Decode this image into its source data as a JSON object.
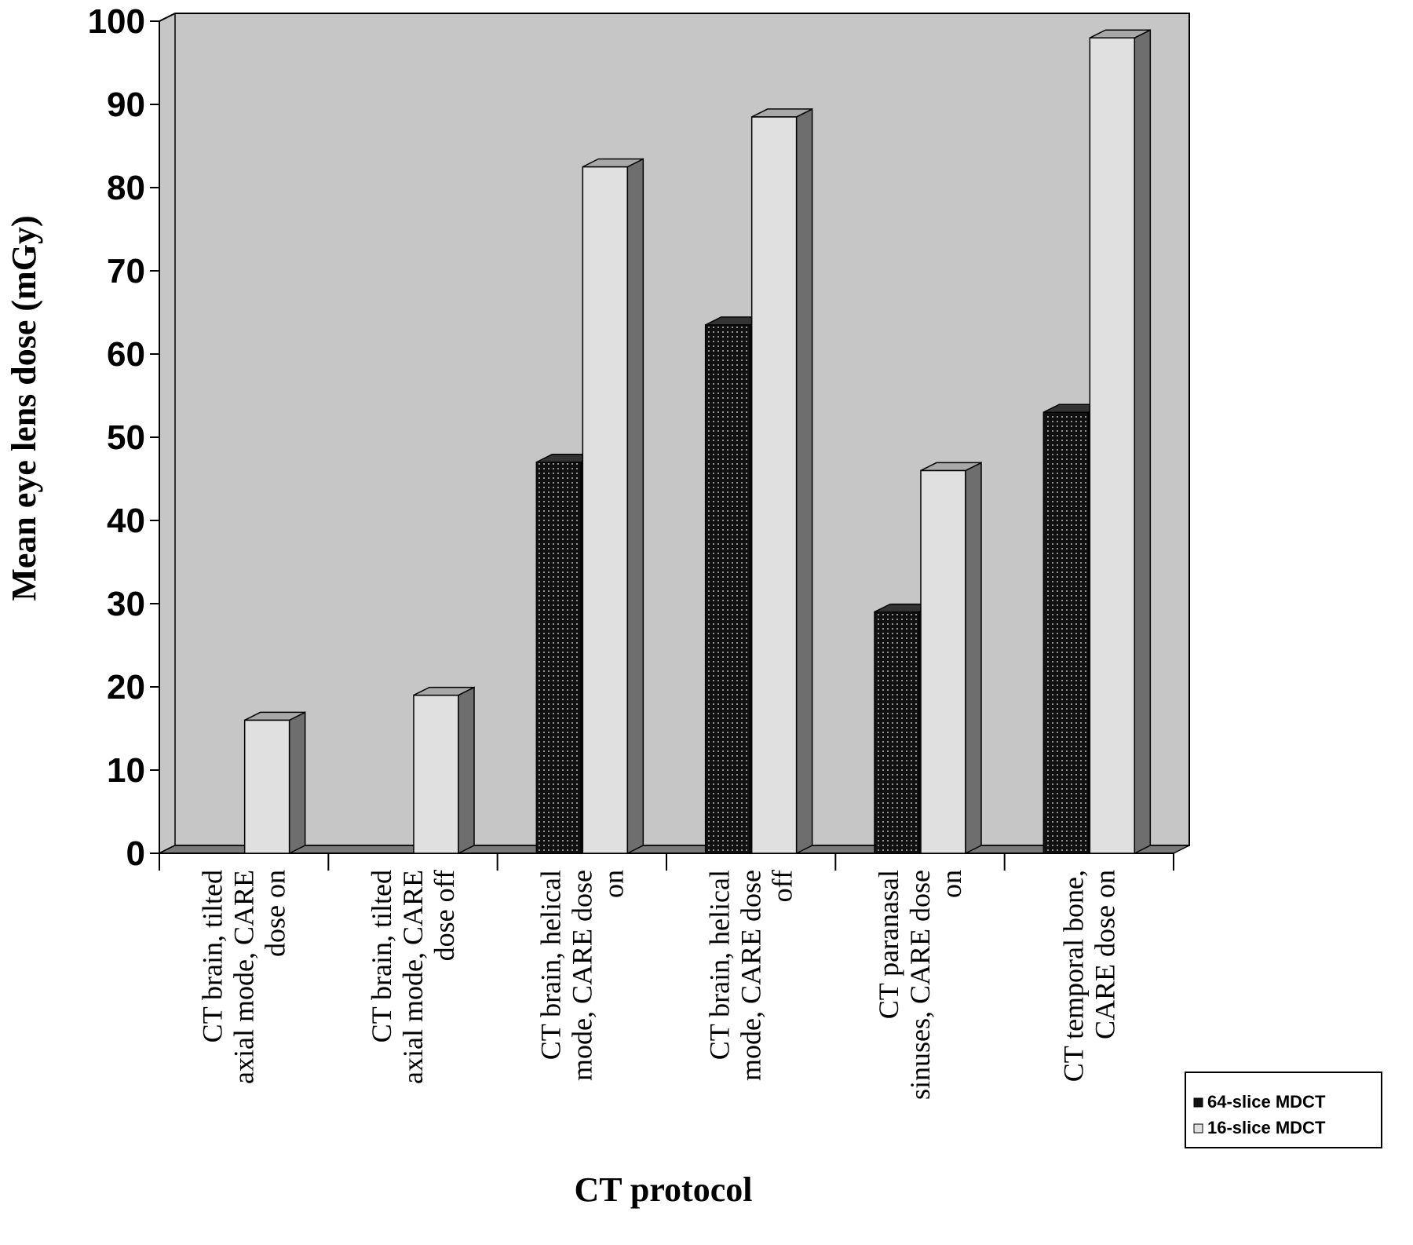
{
  "chart_data": {
    "type": "bar",
    "title": "",
    "xlabel": "CT protocol",
    "ylabel": "Mean eye lens dose (mGy)",
    "ylim": [
      0,
      100
    ],
    "yticks": [
      "0",
      "10",
      "20",
      "30",
      "40",
      "50",
      "60",
      "70",
      "80",
      "90",
      "100"
    ],
    "grid": false,
    "legend_position": "bottom-right",
    "categories": [
      "CT brain, tilted axial mode, CARE dose on",
      "CT brain, tilted axial mode, CARE dose off",
      "CT brain, helical mode, CARE dose on",
      "CT brain, helical mode, CARE dose off",
      "CT paranasal sinuses, CARE dose on",
      "CT temporal bone, CARE dose on"
    ],
    "category_lines": [
      [
        "CT brain, tilted",
        "axial mode, CARE",
        "dose on"
      ],
      [
        "CT brain, tilted",
        "axial mode, CARE",
        "dose off"
      ],
      [
        "CT brain, helical",
        "mode, CARE dose",
        "on"
      ],
      [
        "CT brain, helical",
        "mode, CARE dose",
        "off"
      ],
      [
        "CT paranasal",
        "sinuses, CARE dose",
        "on"
      ],
      [
        "CT temporal bone,",
        "CARE dose on"
      ]
    ],
    "series": [
      {
        "name": "64-slice MDCT",
        "values": [
          0,
          0,
          47,
          63.5,
          29,
          53
        ],
        "color": "#111111",
        "pattern": "dotted"
      },
      {
        "name": "16-slice MDCT",
        "values": [
          16,
          19,
          82.5,
          88.5,
          46,
          98
        ],
        "color": "#e0e0e0",
        "pattern": "solid"
      }
    ],
    "colors": {
      "wall": "#c6c6c6",
      "floor": "#7a7a7a",
      "bar_side": "#6e6e6e",
      "bar_top": "#a8a8a8"
    }
  }
}
